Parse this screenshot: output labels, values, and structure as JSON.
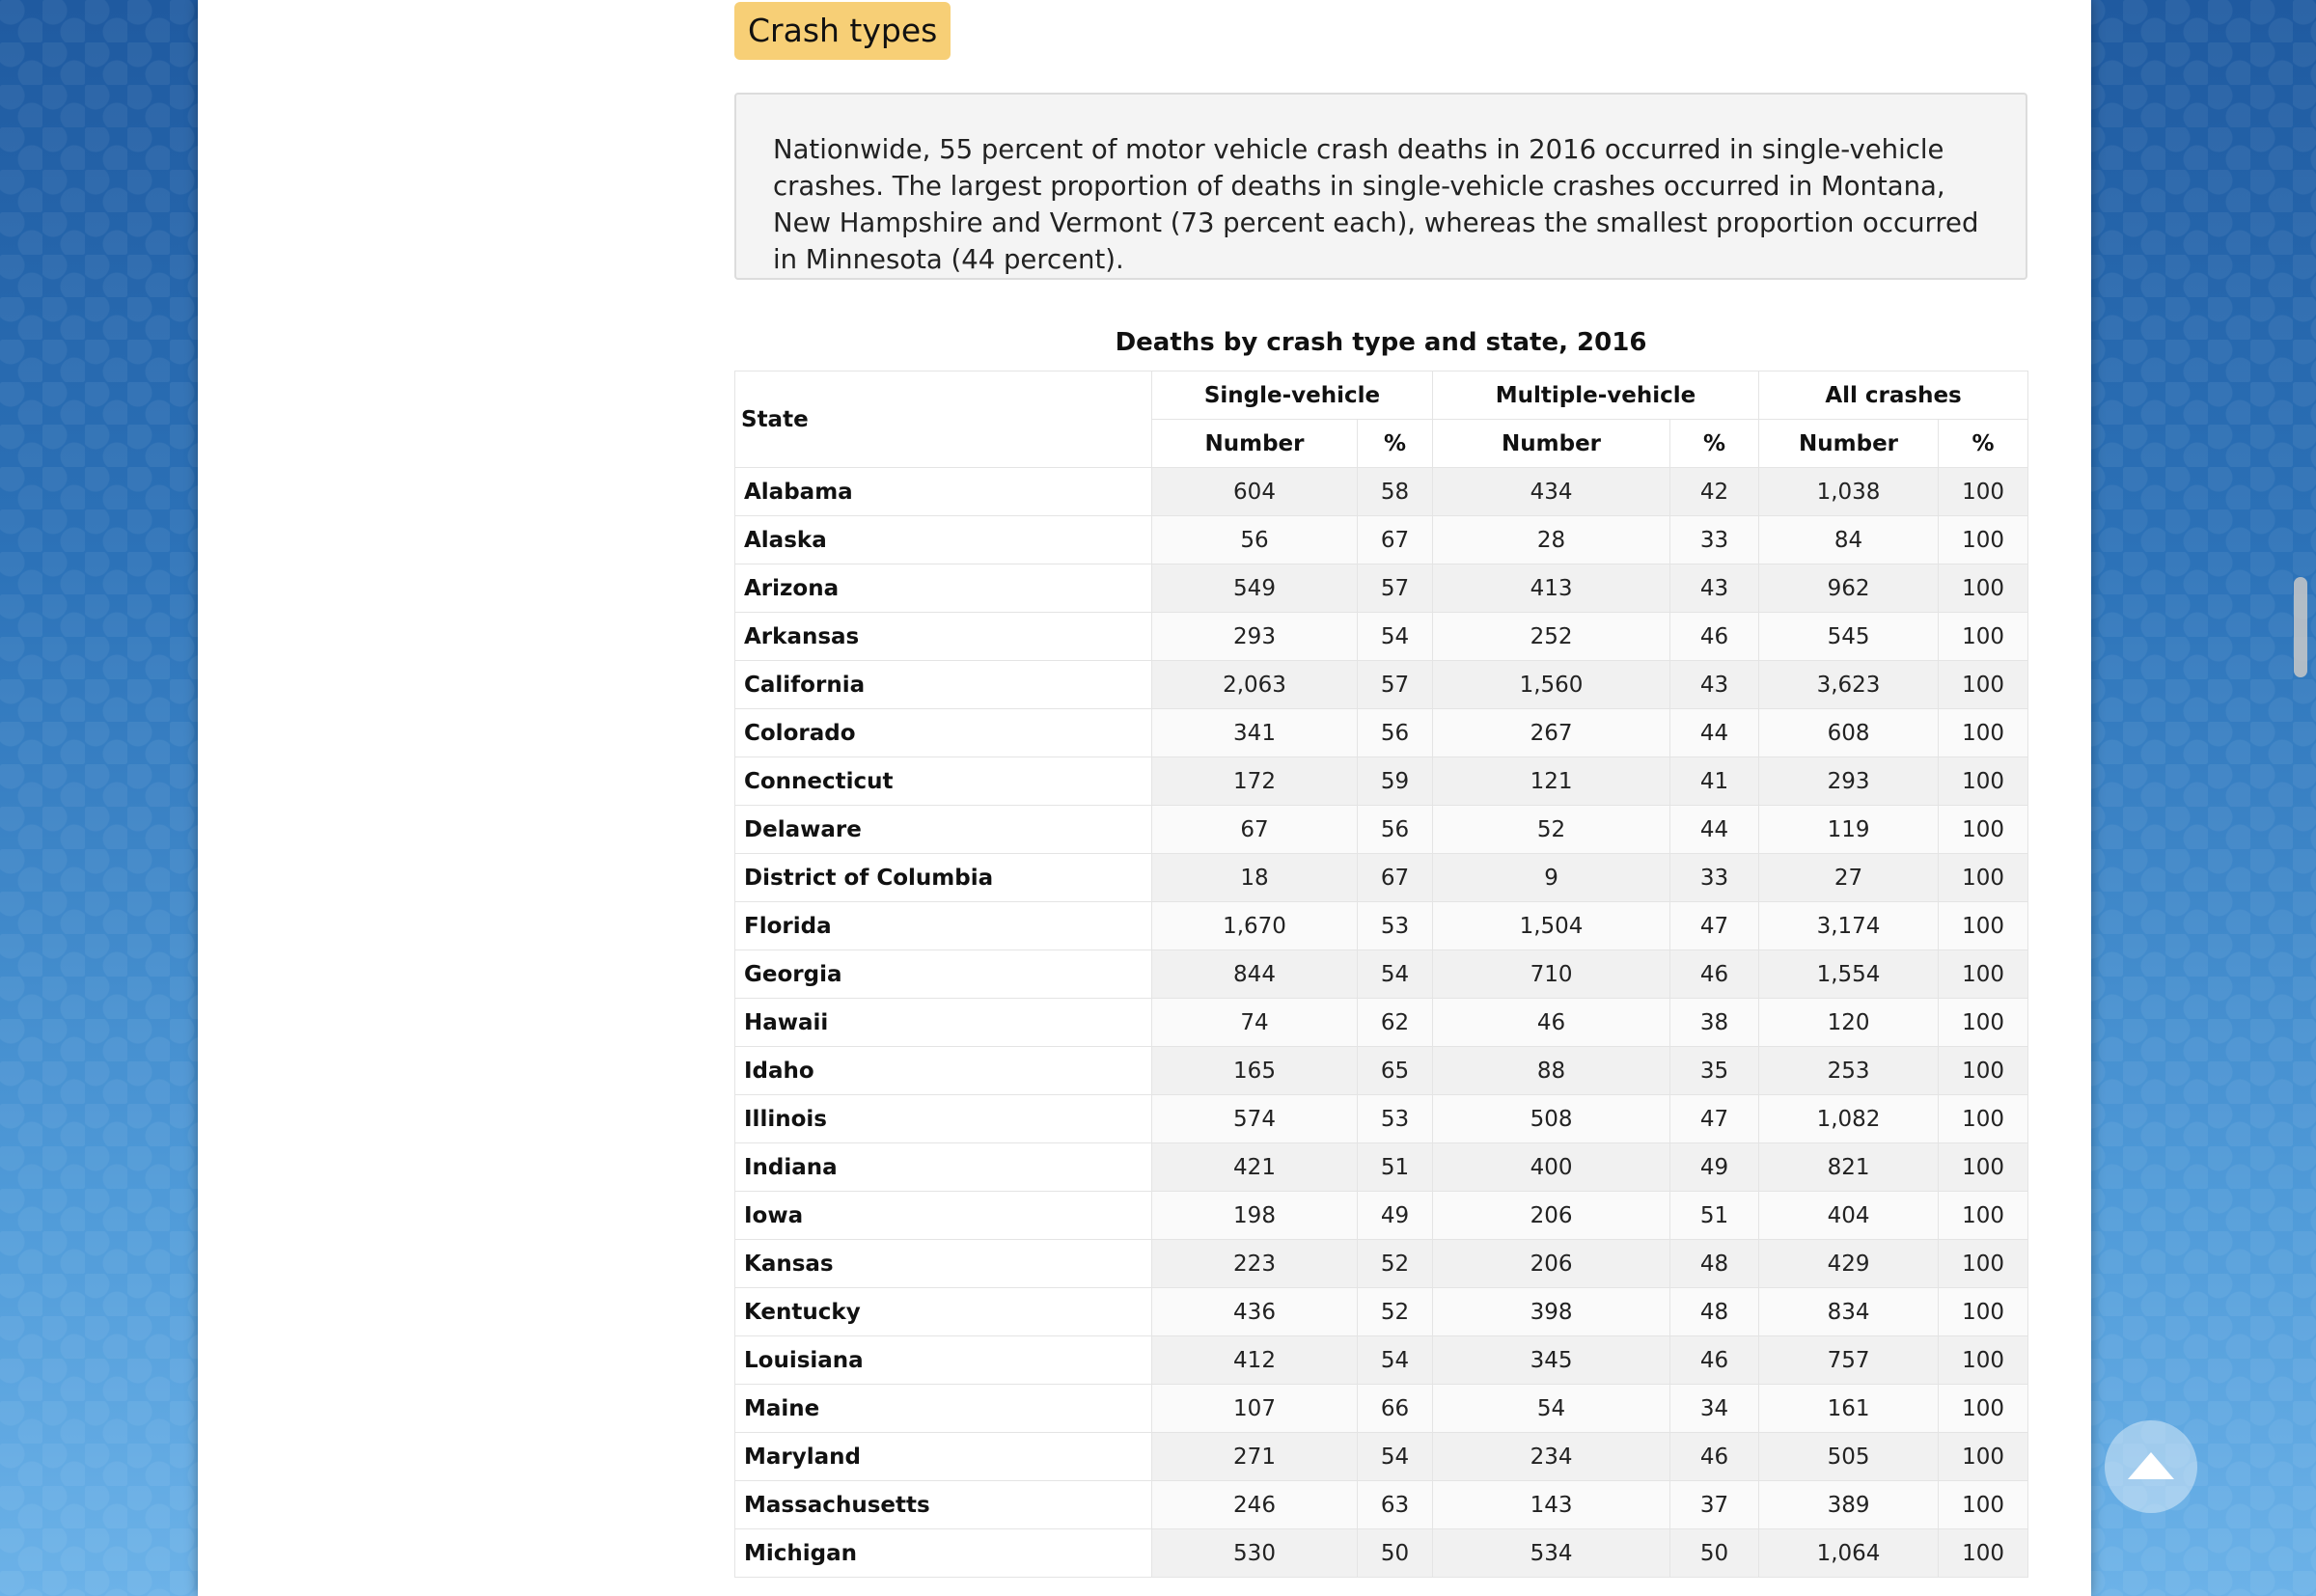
{
  "section": {
    "title": "Crash types",
    "summary": "Nationwide, 55 percent of motor vehicle crash deaths in 2016 occurred in single-vehicle crashes. The largest proportion of deaths in single-vehicle crashes occurred in Montana, New Hampshire and Vermont (73 percent each), whereas the smallest proportion occurred in Minnesota (44 percent)."
  },
  "table": {
    "caption": "Deaths by crash type and state, 2016",
    "headers": {
      "state": "State",
      "single": "Single-vehicle",
      "multiple": "Multiple-vehicle",
      "all": "All crashes",
      "number": "Number",
      "percent": "%"
    },
    "rows": [
      [
        "Alabama",
        "604",
        "58",
        "434",
        "42",
        "1,038",
        "100"
      ],
      [
        "Alaska",
        "56",
        "67",
        "28",
        "33",
        "84",
        "100"
      ],
      [
        "Arizona",
        "549",
        "57",
        "413",
        "43",
        "962",
        "100"
      ],
      [
        "Arkansas",
        "293",
        "54",
        "252",
        "46",
        "545",
        "100"
      ],
      [
        "California",
        "2,063",
        "57",
        "1,560",
        "43",
        "3,623",
        "100"
      ],
      [
        "Colorado",
        "341",
        "56",
        "267",
        "44",
        "608",
        "100"
      ],
      [
        "Connecticut",
        "172",
        "59",
        "121",
        "41",
        "293",
        "100"
      ],
      [
        "Delaware",
        "67",
        "56",
        "52",
        "44",
        "119",
        "100"
      ],
      [
        "District of Columbia",
        "18",
        "67",
        "9",
        "33",
        "27",
        "100"
      ],
      [
        "Florida",
        "1,670",
        "53",
        "1,504",
        "47",
        "3,174",
        "100"
      ],
      [
        "Georgia",
        "844",
        "54",
        "710",
        "46",
        "1,554",
        "100"
      ],
      [
        "Hawaii",
        "74",
        "62",
        "46",
        "38",
        "120",
        "100"
      ],
      [
        "Idaho",
        "165",
        "65",
        "88",
        "35",
        "253",
        "100"
      ],
      [
        "Illinois",
        "574",
        "53",
        "508",
        "47",
        "1,082",
        "100"
      ],
      [
        "Indiana",
        "421",
        "51",
        "400",
        "49",
        "821",
        "100"
      ],
      [
        "Iowa",
        "198",
        "49",
        "206",
        "51",
        "404",
        "100"
      ],
      [
        "Kansas",
        "223",
        "52",
        "206",
        "48",
        "429",
        "100"
      ],
      [
        "Kentucky",
        "436",
        "52",
        "398",
        "48",
        "834",
        "100"
      ],
      [
        "Louisiana",
        "412",
        "54",
        "345",
        "46",
        "757",
        "100"
      ],
      [
        "Maine",
        "107",
        "66",
        "54",
        "34",
        "161",
        "100"
      ],
      [
        "Maryland",
        "271",
        "54",
        "234",
        "46",
        "505",
        "100"
      ],
      [
        "Massachusetts",
        "246",
        "63",
        "143",
        "37",
        "389",
        "100"
      ],
      [
        "Michigan",
        "530",
        "50",
        "534",
        "50",
        "1,064",
        "100"
      ]
    ]
  },
  "controls": {
    "back_to_top_icon": "arrow-up-icon"
  }
}
